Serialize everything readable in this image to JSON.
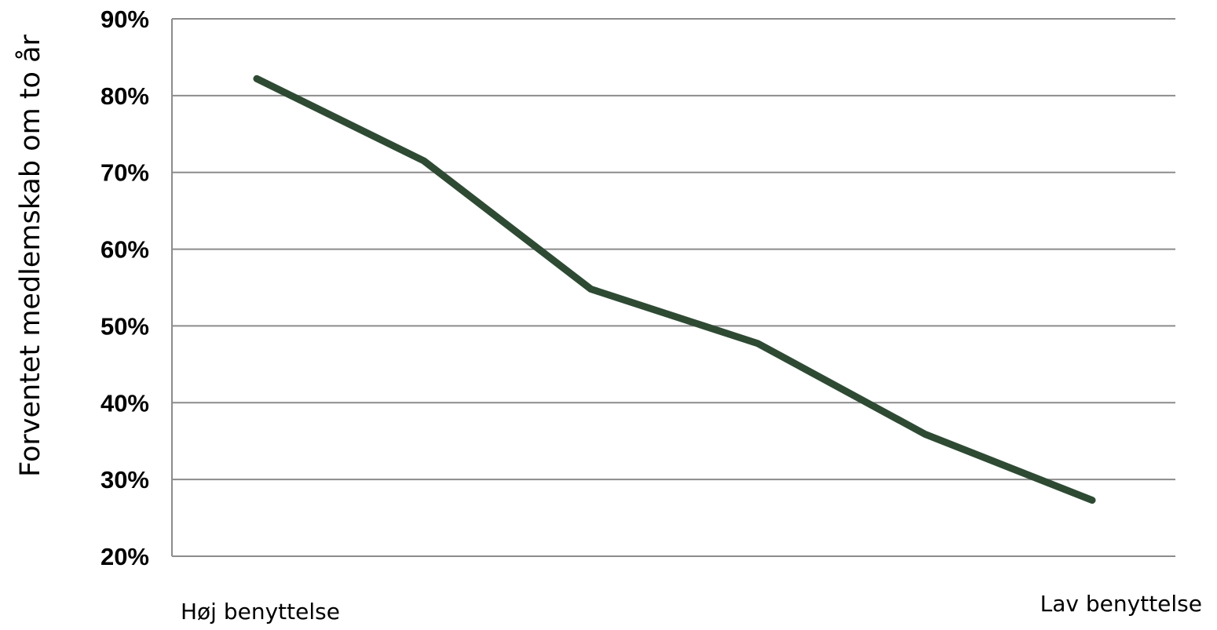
{
  "chart_data": {
    "type": "line",
    "ylabel": "Forventet medlemskab om to år",
    "ylim": [
      0.2,
      0.9
    ],
    "yticks": [
      {
        "value": 0.9,
        "label": "90%"
      },
      {
        "value": 0.8,
        "label": "80%"
      },
      {
        "value": 0.7,
        "label": "70%"
      },
      {
        "value": 0.6,
        "label": "60%"
      },
      {
        "value": 0.5,
        "label": "50%"
      },
      {
        "value": 0.4,
        "label": "40%"
      },
      {
        "value": 0.3,
        "label": "30%"
      },
      {
        "value": 0.2,
        "label": "20%"
      }
    ],
    "x_annotations": {
      "left": "Høj benyttelse",
      "right": "Lav benyttelse"
    },
    "grid": true,
    "legend": "none",
    "series": [
      {
        "color": "#2e4a33",
        "values": [
          0.822,
          0.715,
          0.548,
          0.477,
          0.359,
          0.273
        ]
      }
    ]
  }
}
